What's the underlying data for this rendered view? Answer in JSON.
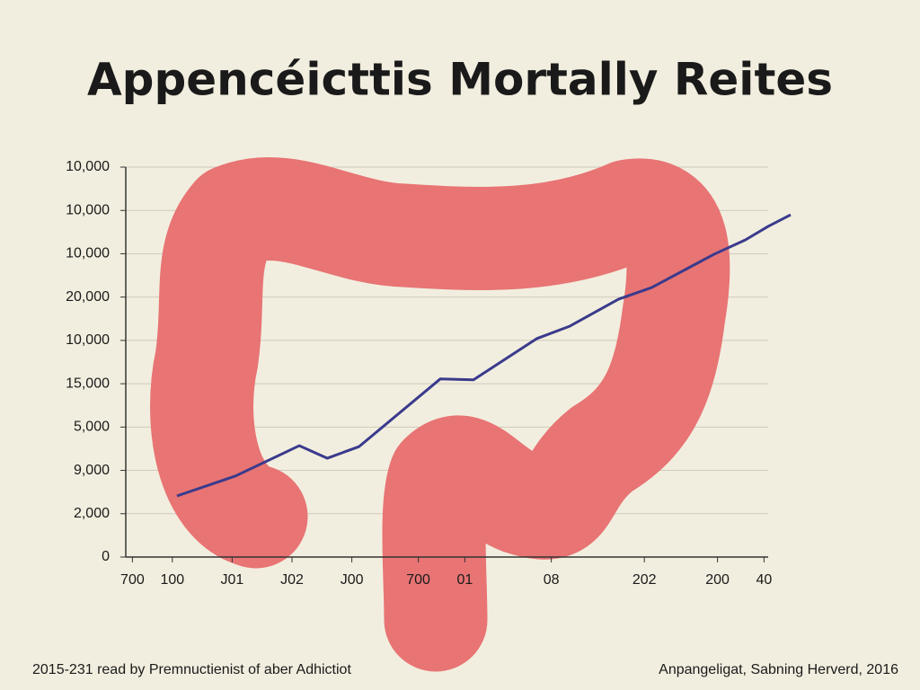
{
  "chart_data": {
    "type": "line",
    "title": "Appencéicttis Mortally Reites",
    "footer_left": "2015-231 read by Premnuctienist of aber Adhictiot",
    "footer_right": "Anpangeligat, Sabning Herverd, 2016",
    "x": [
      7.7,
      16.5,
      26.1,
      30.3,
      35.1,
      47.3,
      52.3,
      61.8,
      66.8,
      74.1,
      79.1,
      88.5,
      93.2,
      96.6,
      100
    ],
    "series": [
      {
        "color": "#3a3a8c",
        "values": [
          1.41,
          1.87,
          2.57,
          2.28,
          2.55,
          4.11,
          4.09,
          5.04,
          5.33,
          5.95,
          6.22,
          6.99,
          7.32,
          7.63,
          7.9
        ]
      }
    ],
    "xlim": [
      0,
      100
    ],
    "xticks": [
      {
        "value": 1,
        "label": "700"
      },
      {
        "value": 7,
        "label": "100"
      },
      {
        "value": 16,
        "label": "J01"
      },
      {
        "value": 25,
        "label": "J02"
      },
      {
        "value": 34,
        "label": "J00"
      },
      {
        "value": 44,
        "label": "700"
      },
      {
        "value": 51,
        "label": "01"
      },
      {
        "value": 64,
        "label": "08"
      },
      {
        "value": 78,
        "label": "202"
      },
      {
        "value": 89,
        "label": "200"
      },
      {
        "value": 96,
        "label": "40"
      }
    ],
    "ylim": [
      0,
      9
    ],
    "yticks": [
      0,
      {
        "value": 1,
        "label": "2,000"
      },
      {
        "value": 2,
        "label": "9,000"
      },
      {
        "value": 3,
        "label": "5,000"
      },
      {
        "value": 4,
        "label": "15,000"
      },
      {
        "value": 5,
        "label": "10,000"
      },
      {
        "value": 6,
        "label": "20,000"
      },
      {
        "value": 7,
        "label": "10,000"
      },
      {
        "value": 8,
        "label": "10,000"
      },
      {
        "value": 9,
        "label": "10,000"
      }
    ],
    "grid": true
  }
}
